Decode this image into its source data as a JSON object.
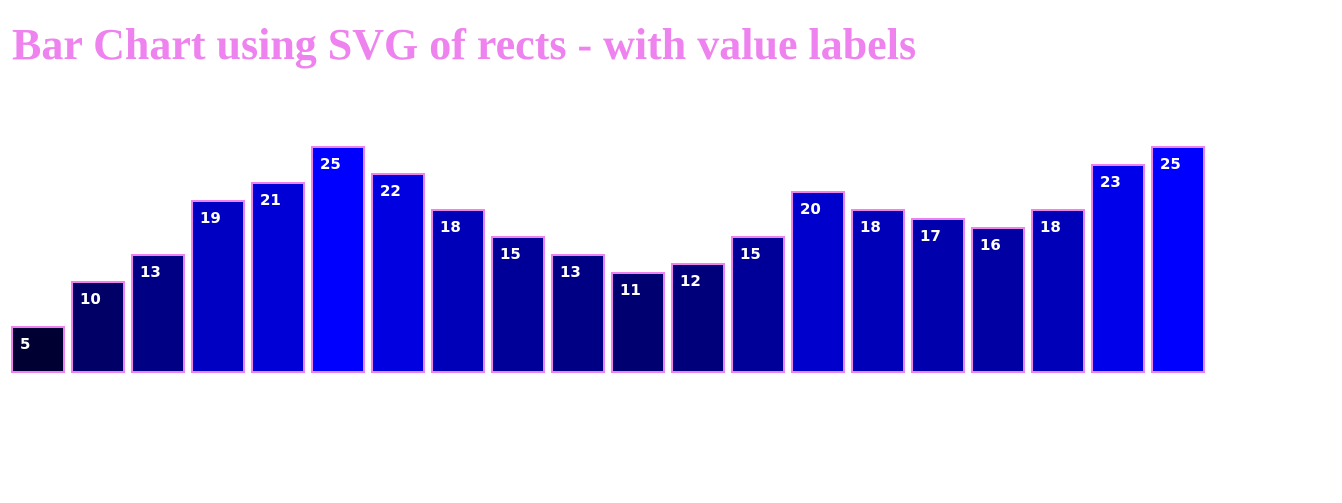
{
  "title": "Bar Chart using SVG of rects - with value labels",
  "colors": {
    "title": "#ee82ee",
    "bar_stroke": "#ee82ee",
    "bar_low": "#000033",
    "bar_high": "#0000ff",
    "label": "#ffffff"
  },
  "chart_data": {
    "type": "bar",
    "title": "Bar Chart using SVG of rects - with value labels",
    "xlabel": "",
    "ylabel": "",
    "values": [
      5,
      10,
      13,
      19,
      21,
      25,
      22,
      18,
      15,
      13,
      11,
      12,
      15,
      20,
      18,
      17,
      16,
      18,
      23,
      25
    ],
    "ylim": [
      0,
      25
    ],
    "grid": false,
    "legend": "none",
    "data_labels": true
  }
}
